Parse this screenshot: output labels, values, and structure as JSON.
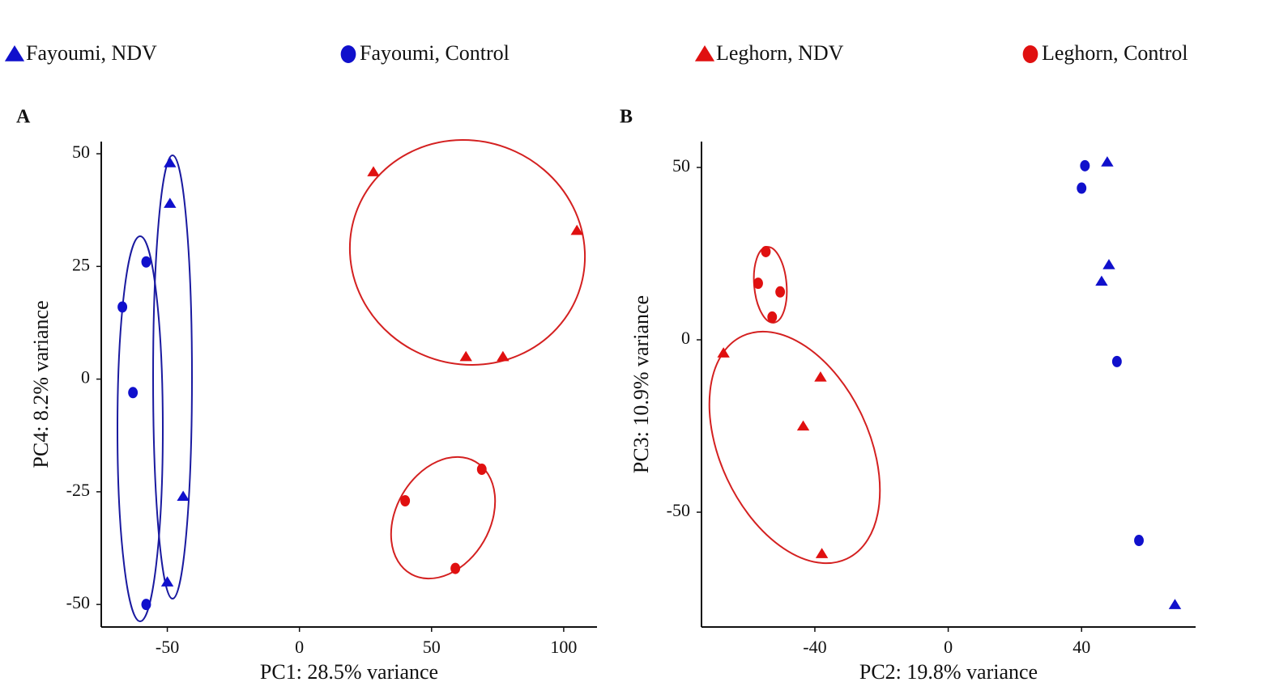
{
  "chart_data": [
    {
      "type": "scatter",
      "panel": "A",
      "x_label": "PC1: 28.5% variance",
      "y_label": "PC4: 8.2% variance",
      "xlim": [
        -75,
        112.6
      ],
      "ylim": [
        -55,
        52.7
      ],
      "xticks": [
        -50,
        0,
        50,
        100
      ],
      "yticks": [
        -50,
        -25,
        0,
        25,
        50
      ],
      "series": [
        {
          "name": "Fayoumi, NDV",
          "color": "#1010cc",
          "marker": "triangle",
          "x": [
            -49,
            -49,
            -44,
            -50
          ],
          "values": [
            48,
            39,
            -26,
            -45
          ]
        },
        {
          "name": "Fayoumi, Control",
          "color": "#1010cc",
          "marker": "circle",
          "x": [
            -67,
            -58,
            -63,
            -58
          ],
          "values": [
            16,
            26,
            -3,
            -50
          ]
        },
        {
          "name": "Leghorn,  NDV",
          "color": "#e01010",
          "marker": "triangle",
          "x": [
            28,
            105,
            63,
            77
          ],
          "values": [
            46,
            33,
            5,
            5
          ]
        },
        {
          "name": "Leghorn, Control",
          "color": "#e01010",
          "marker": "circle",
          "x": [
            40,
            69,
            59
          ],
          "values": [
            -27,
            -20,
            -42
          ]
        }
      ]
    },
    {
      "type": "scatter",
      "panel": "B",
      "x_label": "PC2: 19.8% variance",
      "y_label": "PC3: 10.9% variance",
      "xlim": [
        -74,
        74.2
      ],
      "ylim": [
        -83.3,
        57.5
      ],
      "xticks": [
        -40,
        0,
        40
      ],
      "yticks": [
        -50,
        0,
        50
      ],
      "series": [
        {
          "name": "Fayoumi, NDV",
          "color": "#1010cc",
          "marker": "triangle",
          "x": [
            47.7,
            48.2,
            46,
            68
          ],
          "values": [
            51.6,
            21.8,
            17,
            -76.8
          ]
        },
        {
          "name": "Fayoumi, Control",
          "color": "#1010cc",
          "marker": "circle",
          "x": [
            41,
            40,
            50.6,
            57.2
          ],
          "values": [
            50.5,
            44,
            -6.3,
            -58.2
          ]
        },
        {
          "name": "Leghorn,  NDV",
          "color": "#e01010",
          "marker": "triangle",
          "x": [
            -67.4,
            -38.3,
            -43.5,
            -37.9
          ],
          "values": [
            -3.8,
            -10.8,
            -25,
            -62
          ]
        },
        {
          "name": "Leghorn, Control",
          "color": "#e01010",
          "marker": "circle",
          "x": [
            -54.7,
            -57,
            -50.4,
            -52.8
          ],
          "values": [
            25.6,
            16.4,
            13.9,
            6.6
          ]
        }
      ]
    }
  ]
}
